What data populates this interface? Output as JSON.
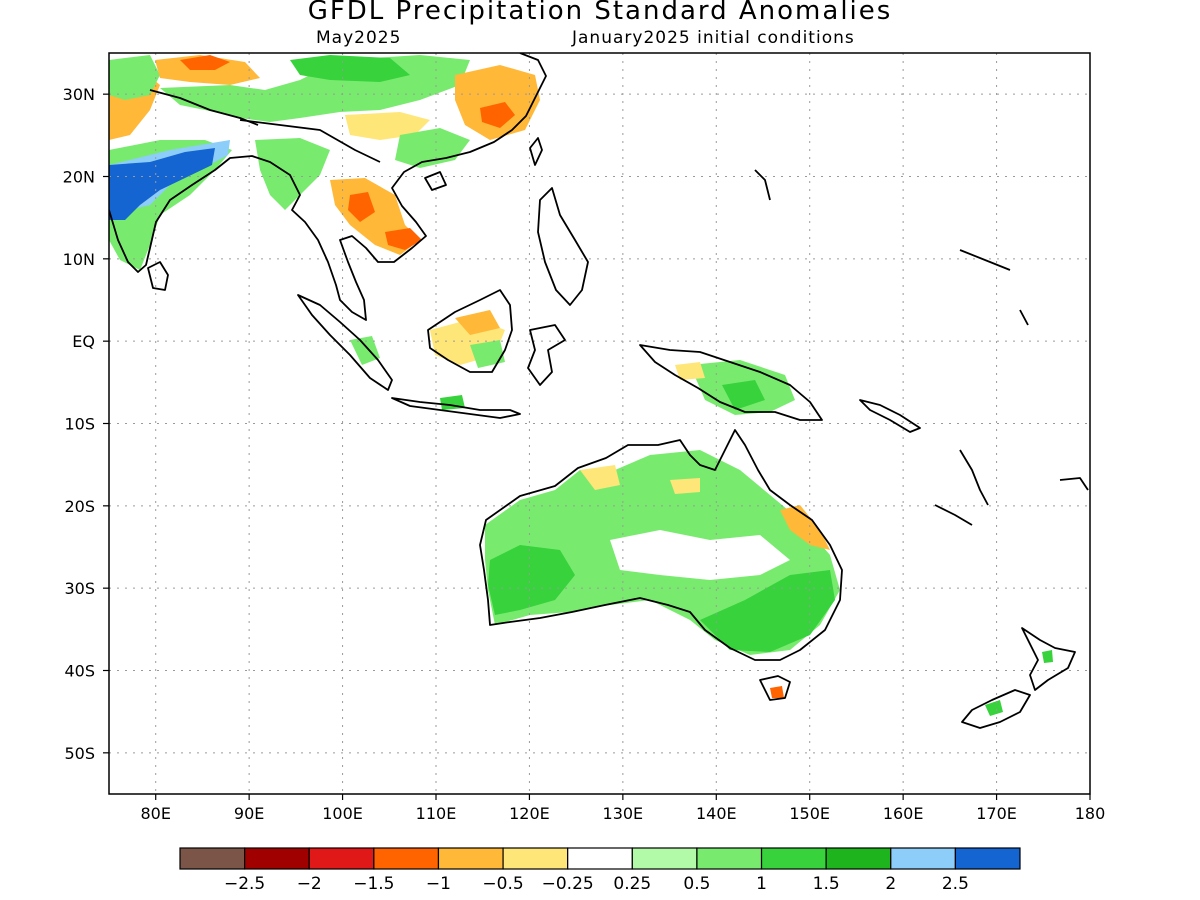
{
  "title": "GFDL Precipitation Standard Anomalies",
  "subtitle_left": "May2025",
  "subtitle_right": "January2025 initial conditions",
  "map": {
    "lon_range": [
      75,
      180
    ],
    "lat_range": [
      -55,
      35
    ],
    "x_ticks": [
      {
        "value": 80,
        "label": "80E"
      },
      {
        "value": 90,
        "label": "90E"
      },
      {
        "value": 100,
        "label": "100E"
      },
      {
        "value": 110,
        "label": "110E"
      },
      {
        "value": 120,
        "label": "120E"
      },
      {
        "value": 130,
        "label": "130E"
      },
      {
        "value": 140,
        "label": "140E"
      },
      {
        "value": 150,
        "label": "150E"
      },
      {
        "value": 160,
        "label": "160E"
      },
      {
        "value": 170,
        "label": "170E"
      },
      {
        "value": 180,
        "label": "180"
      }
    ],
    "y_ticks": [
      {
        "value": 30,
        "label": "30N"
      },
      {
        "value": 20,
        "label": "20N"
      },
      {
        "value": 10,
        "label": "10N"
      },
      {
        "value": 0,
        "label": "EQ"
      },
      {
        "value": -10,
        "label": "10S"
      },
      {
        "value": -20,
        "label": "20S"
      },
      {
        "value": -30,
        "label": "30S"
      },
      {
        "value": -40,
        "label": "40S"
      },
      {
        "value": -50,
        "label": "50S"
      }
    ],
    "grid": "dotted",
    "coastline_color": "#000000"
  },
  "colorbar": {
    "colors": [
      "#7a5548",
      "#a00000",
      "#e01818",
      "#ff6400",
      "#ffb838",
      "#ffe678",
      "#ffffff",
      "#b2f9a8",
      "#78eb6e",
      "#37d23c",
      "#1eb41e",
      "#8ccdf9",
      "#1464d2"
    ],
    "labels": [
      "−2.5",
      "−2",
      "−1.5",
      "−1",
      "−0.5",
      "−0.25",
      "0.25",
      "0.5",
      "1",
      "1.5",
      "2",
      "2.5"
    ]
  },
  "colors": {
    "strong_wet": "#1464d2",
    "wet_light": "#8ccdf9",
    "green_1": "#b2f9a8",
    "green_2": "#78eb6e",
    "green_3": "#37d23c",
    "orange_light": "#ffb838",
    "yellow": "#ffe678",
    "orange": "#ff6400",
    "red": "#e01818"
  }
}
